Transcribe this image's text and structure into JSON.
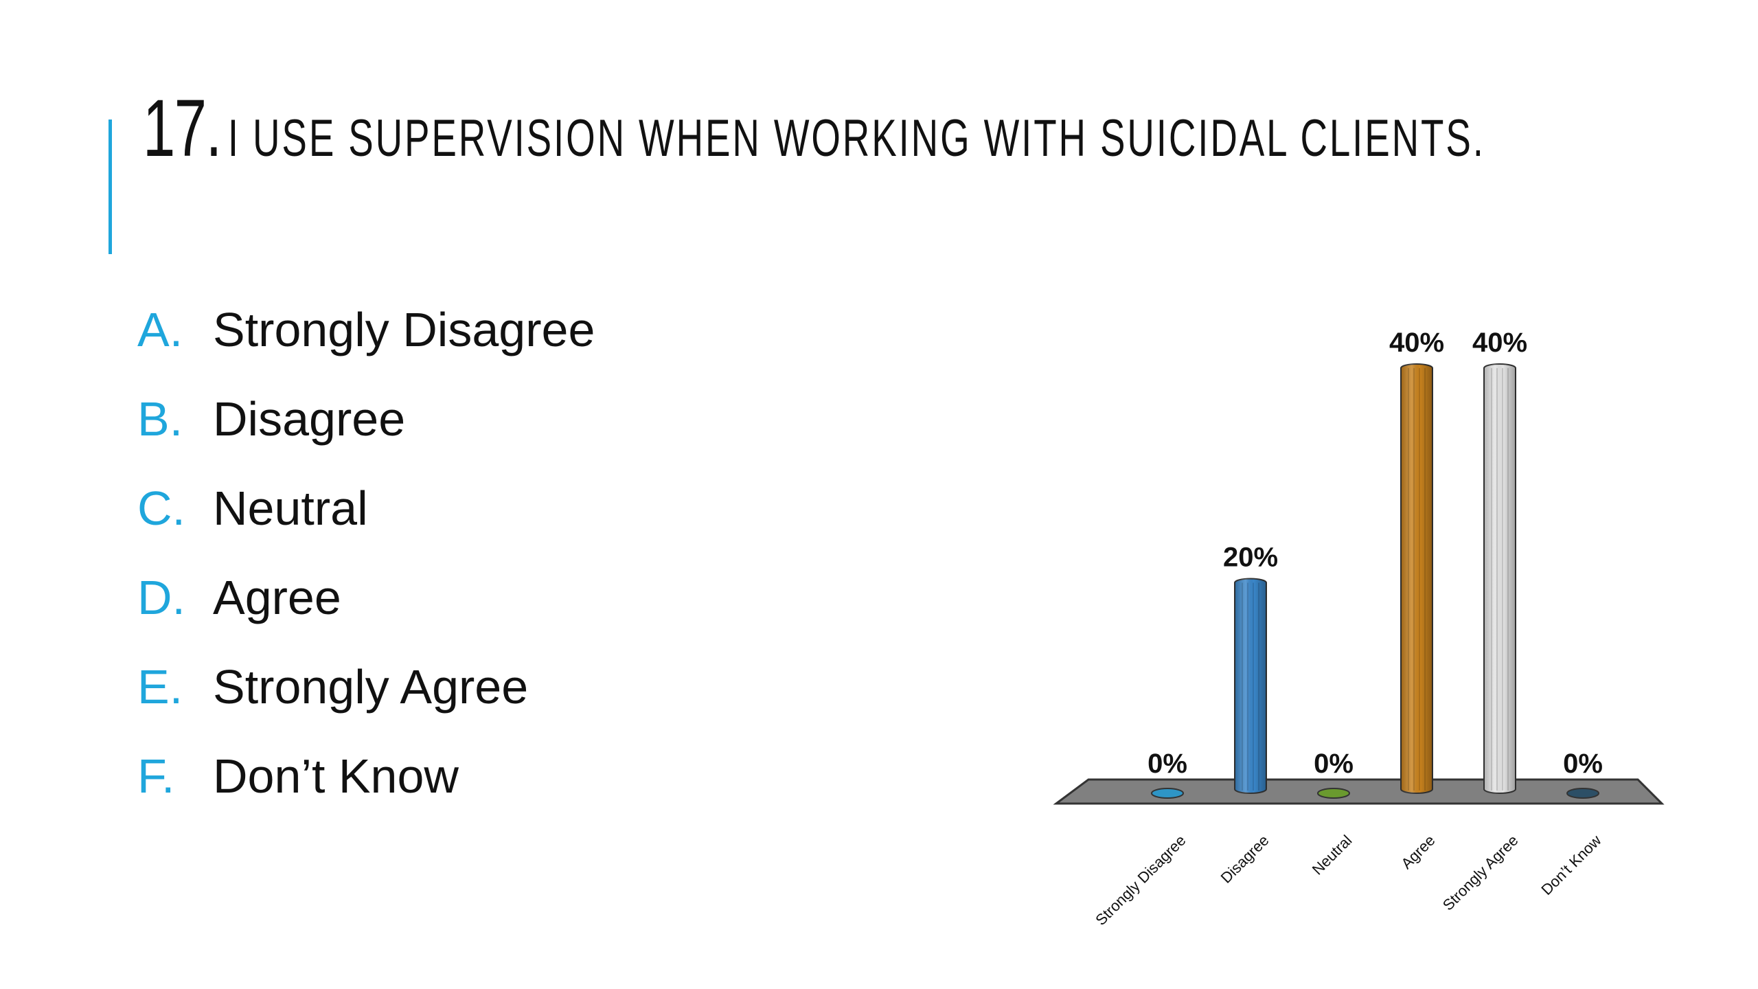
{
  "slide": {
    "question_number": "17.",
    "question_text": "I USE SUPERVISION WHEN WORKING WITH SUICIDAL CLIENTS.",
    "accent_color": "#1fa6dc"
  },
  "options": [
    {
      "letter": "A.",
      "text": "Strongly Disagree"
    },
    {
      "letter": "B.",
      "text": "Disagree"
    },
    {
      "letter": "C.",
      "text": "Neutral"
    },
    {
      "letter": "D.",
      "text": "Agree"
    },
    {
      "letter": "E.",
      "text": "Strongly Agree"
    },
    {
      "letter": "F.",
      "text": "Don’t Know"
    }
  ],
  "chart_data": {
    "type": "bar",
    "categories": [
      "Strongly Disagree",
      "Disagree",
      "Neutral",
      "Agree",
      "Strongly Agree",
      "Don’t Know"
    ],
    "values": [
      0,
      20,
      0,
      40,
      40,
      0
    ],
    "value_labels": [
      "0%",
      "20%",
      "0%",
      "40%",
      "40%",
      "0%"
    ],
    "colors": [
      "#2e95c6",
      "#3a86c9",
      "#6a9a2e",
      "#c8821e",
      "#e4e4e4",
      "#2c4f66"
    ],
    "ylim": [
      0,
      40
    ],
    "grid": false,
    "floor_color": "#808080"
  }
}
